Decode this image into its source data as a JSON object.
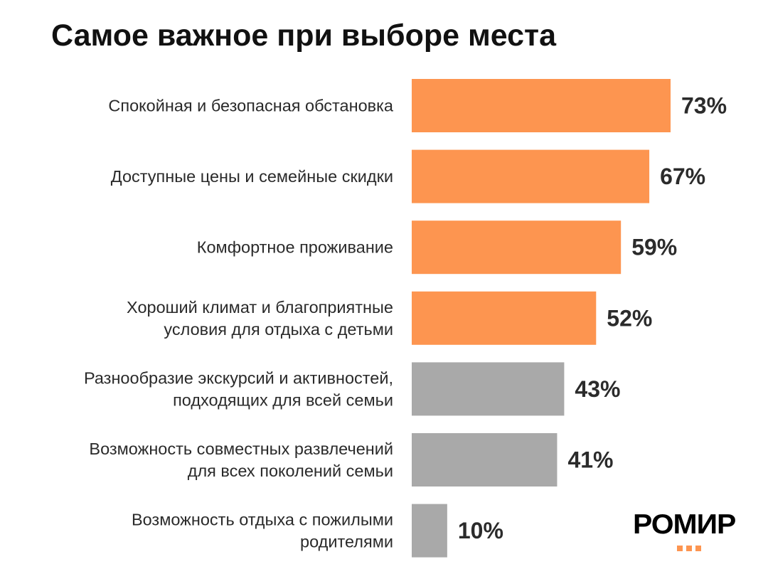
{
  "chart_data": {
    "type": "bar",
    "orientation": "horizontal",
    "title": "Самое важное при выборе места",
    "categories": [
      [
        "Спокойная и безопасная обстановка"
      ],
      [
        "Доступные цены и семейные скидки"
      ],
      [
        "Комфортное проживание"
      ],
      [
        "Хороший климат и благоприятные",
        "условия для отдыха с детьми"
      ],
      [
        "Разнообразие экскурсий и активностей,",
        "подходящих для всей семьи"
      ],
      [
        "Возможность совместных развлечений",
        "для всех поколений семьи"
      ],
      [
        "Возможность отдыха с пожилыми",
        "родителями"
      ]
    ],
    "values": [
      73,
      67,
      59,
      52,
      43,
      41,
      10
    ],
    "value_labels": [
      "73%",
      "67%",
      "59%",
      "52%",
      "43%",
      "41%",
      "10%"
    ],
    "highlight": [
      true,
      true,
      true,
      true,
      false,
      false,
      false
    ],
    "xlim": [
      0,
      100
    ],
    "xlabel": "",
    "ylabel": "",
    "grid": false,
    "legend": "none"
  },
  "colors": {
    "highlight": "#fd9550",
    "muted": "#a9a9a9",
    "logo_dots": "#fd9550"
  },
  "brand": {
    "logo_text": "РОМИР"
  }
}
